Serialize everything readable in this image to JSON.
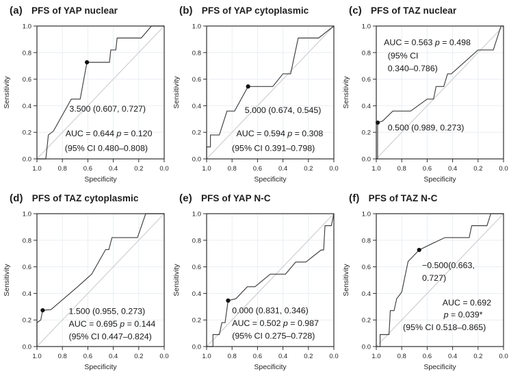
{
  "figure": {
    "background": "#ffffff",
    "text_color": "#1a1a1a",
    "curve_color": "#3e3e3e",
    "diagonal_color": "#cccccc",
    "grid_color": "#e9eef2",
    "axis_color": "#2d2d2d",
    "point_color": "#101010"
  },
  "chart_data": {
    "type": "line",
    "subtype": "roc-curves",
    "xlabel": "Specificity",
    "ylabel": "Sensitivity",
    "x_axis_reversed": true,
    "grid": true,
    "xticks": [
      "1.0",
      "0.8",
      "0.6",
      "0.4",
      "0.2",
      "0.0"
    ],
    "yticks": [
      "0.0",
      "0.2",
      "0.4",
      "0.6",
      "0.8",
      "1.0"
    ],
    "xlim": [
      1.0,
      0.0
    ],
    "ylim": [
      0.0,
      1.0
    ],
    "panels": [
      {
        "letter": "(a)",
        "title": "PFS of YAP nuclear",
        "cutoff": "3.500",
        "cutoff_point": {
          "specificity": 0.607,
          "sensitivity": 0.727
        },
        "auc": "0.644",
        "p": "0.120",
        "ci": "0.480–0.808",
        "curve": [
          [
            1.0,
            0.0
          ],
          [
            0.93,
            0.0
          ],
          [
            0.91,
            0.18
          ],
          [
            0.87,
            0.21
          ],
          [
            0.73,
            0.45
          ],
          [
            0.66,
            0.45
          ],
          [
            0.607,
            0.727
          ],
          [
            0.43,
            0.727
          ],
          [
            0.42,
            0.82
          ],
          [
            0.38,
            0.82
          ],
          [
            0.37,
            0.91
          ],
          [
            0.18,
            0.91
          ],
          [
            0.1,
            1.0
          ],
          [
            0.0,
            1.0
          ]
        ],
        "annotations": [
          {
            "text": "3.500 (0.607, 0.727)",
            "fx": 0.555,
            "fy": 0.355,
            "anchor": "middle"
          },
          {
            "text": "AUC = 0.644 p = 0.120",
            "fx": 0.565,
            "fy": 0.17,
            "anchor": "middle"
          },
          {
            "text": "(95% CI 0.480–0.808)",
            "fx": 0.545,
            "fy": 0.06,
            "anchor": "middle"
          }
        ]
      },
      {
        "letter": "(b)",
        "title": "PFS of YAP cytoplasmic",
        "cutoff": "5.000",
        "cutoff_point": {
          "specificity": 0.674,
          "sensitivity": 0.545
        },
        "auc": "0.594",
        "p": "0.308",
        "ci": "0.391–0.798",
        "curve": [
          [
            1.0,
            0.0
          ],
          [
            1.0,
            0.09
          ],
          [
            0.97,
            0.09
          ],
          [
            0.97,
            0.18
          ],
          [
            0.9,
            0.18
          ],
          [
            0.84,
            0.36
          ],
          [
            0.78,
            0.36
          ],
          [
            0.674,
            0.545
          ],
          [
            0.48,
            0.545
          ],
          [
            0.4,
            0.64
          ],
          [
            0.34,
            0.64
          ],
          [
            0.28,
            0.91
          ],
          [
            0.12,
            0.91
          ],
          [
            0.0,
            1.0
          ]
        ],
        "annotations": [
          {
            "text": "5.000 (0.674, 0.545)",
            "fx": 0.6,
            "fy": 0.345,
            "anchor": "middle"
          },
          {
            "text": "AUC = 0.594 p = 0.308",
            "fx": 0.575,
            "fy": 0.17,
            "anchor": "middle"
          },
          {
            "text": "(95% CI 0.391–0.798)",
            "fx": 0.525,
            "fy": 0.06,
            "anchor": "middle"
          }
        ]
      },
      {
        "letter": "(c)",
        "title": "PFS of TAZ nuclear",
        "cutoff": "0.500",
        "cutoff_point": {
          "specificity": 0.989,
          "sensitivity": 0.273
        },
        "auc": "0.563",
        "p": "0.498",
        "ci": "0.340–0.786",
        "curve": [
          [
            1.0,
            0.0
          ],
          [
            0.99,
            0.0
          ],
          [
            0.989,
            0.273
          ],
          [
            0.95,
            0.285
          ],
          [
            0.87,
            0.36
          ],
          [
            0.73,
            0.36
          ],
          [
            0.6,
            0.45
          ],
          [
            0.55,
            0.45
          ],
          [
            0.53,
            0.545
          ],
          [
            0.47,
            0.545
          ],
          [
            0.44,
            0.64
          ],
          [
            0.41,
            0.64
          ],
          [
            0.2,
            0.82
          ],
          [
            0.08,
            0.82
          ],
          [
            0.02,
            1.0
          ],
          [
            0.0,
            1.0
          ]
        ],
        "annotations": [
          {
            "text": "AUC = 0.563 p = 0.498",
            "fx": 0.06,
            "fy": 0.855,
            "anchor": "start"
          },
          {
            "text": "(95% CI",
            "fx": 0.09,
            "fy": 0.755,
            "anchor": "start"
          },
          {
            "text": "0.340–0.786)",
            "fx": 0.09,
            "fy": 0.66,
            "anchor": "start"
          },
          {
            "text": "0.500 (0.989, 0.273)",
            "fx": 0.09,
            "fy": 0.215,
            "anchor": "start"
          }
        ]
      },
      {
        "letter": "(d)",
        "title": "PFS of TAZ cytoplasmic",
        "cutoff": "1.500",
        "cutoff_point": {
          "specificity": 0.955,
          "sensitivity": 0.273
        },
        "auc": "0.695",
        "p": "0.144",
        "ci": "0.447–0.824",
        "curve": [
          [
            1.0,
            0.0
          ],
          [
            1.0,
            0.18
          ],
          [
            0.97,
            0.2
          ],
          [
            0.955,
            0.273
          ],
          [
            0.89,
            0.278
          ],
          [
            0.68,
            0.45
          ],
          [
            0.57,
            0.545
          ],
          [
            0.46,
            0.73
          ],
          [
            0.435,
            0.73
          ],
          [
            0.41,
            0.82
          ],
          [
            0.21,
            0.82
          ],
          [
            0.145,
            1.0
          ],
          [
            0.0,
            1.0
          ]
        ],
        "annotations": [
          {
            "text": "1.500 (0.955, 0.273)",
            "fx": 0.25,
            "fy": 0.245,
            "anchor": "start"
          },
          {
            "text": "AUC = 0.695 p = 0.144",
            "fx": 0.25,
            "fy": 0.15,
            "anchor": "start"
          },
          {
            "text": "(95% CI 0.447–0.824)",
            "fx": 0.25,
            "fy": 0.055,
            "anchor": "start"
          }
        ]
      },
      {
        "letter": "(e)",
        "title": "PFS of YAP N-C",
        "cutoff": "0.000",
        "cutoff_point": {
          "specificity": 0.831,
          "sensitivity": 0.346
        },
        "auc": "0.502",
        "p": "0.987",
        "ci": "0.275–0.728",
        "curve": [
          [
            1.0,
            0.0
          ],
          [
            0.95,
            0.0
          ],
          [
            0.95,
            0.09
          ],
          [
            0.9,
            0.09
          ],
          [
            0.88,
            0.18
          ],
          [
            0.855,
            0.18
          ],
          [
            0.831,
            0.346
          ],
          [
            0.77,
            0.36
          ],
          [
            0.68,
            0.45
          ],
          [
            0.62,
            0.45
          ],
          [
            0.5,
            0.545
          ],
          [
            0.38,
            0.545
          ],
          [
            0.3,
            0.636
          ],
          [
            0.22,
            0.636
          ],
          [
            0.1,
            0.727
          ],
          [
            0.08,
            0.727
          ],
          [
            0.07,
            0.91
          ],
          [
            0.02,
            0.91
          ],
          [
            0.0,
            1.0
          ]
        ],
        "annotations": [
          {
            "text": "0.000 (0.831, 0.346)",
            "fx": 0.2,
            "fy": 0.25,
            "anchor": "start"
          },
          {
            "text": "AUC = 0.502 p = 0.987",
            "fx": 0.2,
            "fy": 0.155,
            "anchor": "start"
          },
          {
            "text": "(95% CI 0.275–0.728)",
            "fx": 0.2,
            "fy": 0.06,
            "anchor": "start"
          }
        ]
      },
      {
        "letter": "(f)",
        "title": "PFS of TAZ N-C",
        "cutoff": "−0.500",
        "cutoff_point": {
          "specificity": 0.663,
          "sensitivity": 0.727
        },
        "auc": "0.692",
        "p": "0.039*",
        "ci": "0.518–0.865",
        "curve": [
          [
            1.0,
            0.0
          ],
          [
            0.97,
            0.0
          ],
          [
            0.97,
            0.09
          ],
          [
            0.9,
            0.09
          ],
          [
            0.89,
            0.27
          ],
          [
            0.86,
            0.27
          ],
          [
            0.84,
            0.36
          ],
          [
            0.8,
            0.41
          ],
          [
            0.75,
            0.64
          ],
          [
            0.7,
            0.69
          ],
          [
            0.663,
            0.727
          ],
          [
            0.55,
            0.78
          ],
          [
            0.46,
            0.82
          ],
          [
            0.27,
            0.82
          ],
          [
            0.25,
            0.91
          ],
          [
            0.13,
            0.91
          ],
          [
            0.1,
            1.0
          ],
          [
            0.0,
            1.0
          ]
        ],
        "annotations": [
          {
            "text": "−0.500(0.663,",
            "fx": 0.36,
            "fy": 0.59,
            "anchor": "start"
          },
          {
            "text": "0.727)",
            "fx": 0.36,
            "fy": 0.495,
            "anchor": "start"
          },
          {
            "text": "AUC = 0.692",
            "fx": 0.52,
            "fy": 0.31,
            "anchor": "start"
          },
          {
            "text": "p = 0.039*",
            "fx": 0.53,
            "fy": 0.22,
            "anchor": "start"
          },
          {
            "text": "(95% CI 0.518–0.865)",
            "fx": 0.21,
            "fy": 0.125,
            "anchor": "start"
          }
        ]
      }
    ]
  }
}
